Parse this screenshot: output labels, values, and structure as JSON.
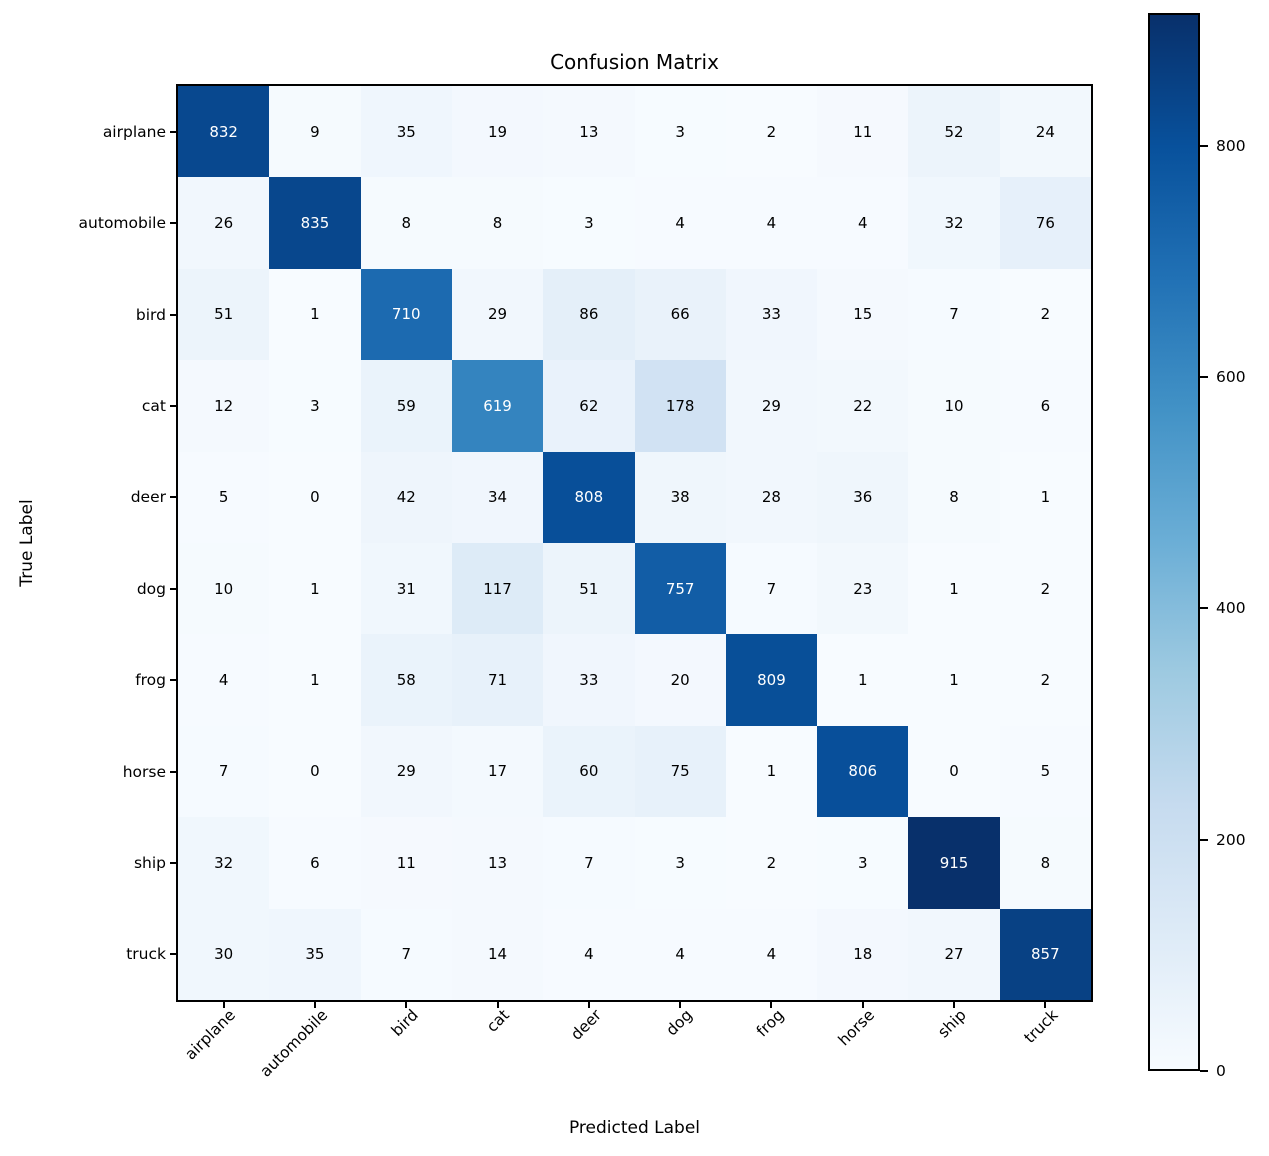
{
  "chart_data": {
    "type": "heatmap",
    "title": "Confusion Matrix",
    "xlabel": "Predicted Label",
    "ylabel": "True Label",
    "categories": [
      "airplane",
      "automobile",
      "bird",
      "cat",
      "deer",
      "dog",
      "frog",
      "horse",
      "ship",
      "truck"
    ],
    "x_ticklabels": [
      "airplane",
      "automobile",
      "bird",
      "cat",
      "deer",
      "dog",
      "frog",
      "horse",
      "ship",
      "truck"
    ],
    "y_ticklabels": [
      "airplane",
      "automobile",
      "bird",
      "cat",
      "deer",
      "dog",
      "frog",
      "horse",
      "ship",
      "truck"
    ],
    "matrix": [
      [
        832,
        9,
        35,
        19,
        13,
        3,
        2,
        11,
        52,
        24
      ],
      [
        26,
        835,
        8,
        8,
        3,
        4,
        4,
        4,
        32,
        76
      ],
      [
        51,
        1,
        710,
        29,
        86,
        66,
        33,
        15,
        7,
        2
      ],
      [
        12,
        3,
        59,
        619,
        62,
        178,
        29,
        22,
        10,
        6
      ],
      [
        5,
        0,
        42,
        34,
        808,
        38,
        28,
        36,
        8,
        1
      ],
      [
        10,
        1,
        31,
        117,
        51,
        757,
        7,
        23,
        1,
        2
      ],
      [
        4,
        1,
        58,
        71,
        33,
        20,
        809,
        1,
        1,
        2
      ],
      [
        7,
        0,
        29,
        17,
        60,
        75,
        1,
        806,
        0,
        5
      ],
      [
        32,
        6,
        11,
        13,
        7,
        3,
        2,
        3,
        915,
        8
      ],
      [
        30,
        35,
        7,
        14,
        4,
        4,
        4,
        18,
        27,
        857
      ]
    ],
    "vmin": 0,
    "vmax": 915,
    "colorbar_ticks": [
      0,
      200,
      400,
      600,
      800
    ],
    "colormap": "Blues",
    "colormap_stops": [
      "#f7fbff",
      "#deebf7",
      "#c6dbef",
      "#9ecae1",
      "#6baed6",
      "#4292c6",
      "#2171b5",
      "#08519c",
      "#08306b"
    ],
    "cell_text_color_high": "#ffffff",
    "cell_text_color_low": "#000000",
    "grid": false,
    "legend_position": "colorbar-right"
  }
}
